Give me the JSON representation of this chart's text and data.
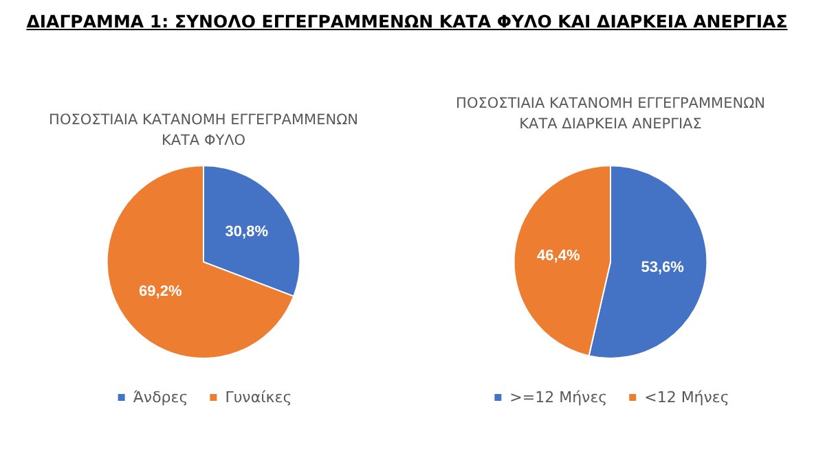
{
  "chart_data": [
    {
      "type": "pie",
      "title": "ΠΟΣΟΣΤΙΑΙΑ ΚΑΤΑΝΟΜΗ ΕΓΓΕΓΡΑΜΜΕΝΩΝ\nΚΑΤΑ ΦΥΛΟ",
      "annotations": [
        "ΔΙΑΓΡΑΜΜΑ 1: ΣΥΝΟΛΟ ΕΓΓΕΓΡΑΜΜΕΝΩΝ ΚΑΤΑ ΦΥΛΟ ΚΑΙ ΔΙΑΡΚΕΙΑ ΑΝΕΡΓΙΑΣ"
      ],
      "categories": [
        "Άνδρες",
        "Γυναίκες"
      ],
      "values": [
        30.8,
        69.2
      ],
      "colors": [
        "#4472c4",
        "#ed7d31"
      ],
      "value_labels": [
        "30,8%",
        "69,2%"
      ],
      "legend": "bottom"
    },
    {
      "type": "pie",
      "title": "ΠΟΣΟΣΤΙΑΙΑ ΚΑΤΑΝΟΜΗ ΕΓΓΕΓΡΑΜΜΕΝΩΝ\nΚΑΤΑ ΔΙΑΡΚΕΙΑ ΑΝΕΡΓΙΑΣ",
      "categories": [
        ">=12 Μήνες",
        "<12 Μήνες"
      ],
      "values": [
        53.6,
        46.4
      ],
      "colors": [
        "#4472c4",
        "#ed7d31"
      ],
      "value_labels": [
        "53,6%",
        "46,4%"
      ],
      "legend": "bottom"
    }
  ]
}
